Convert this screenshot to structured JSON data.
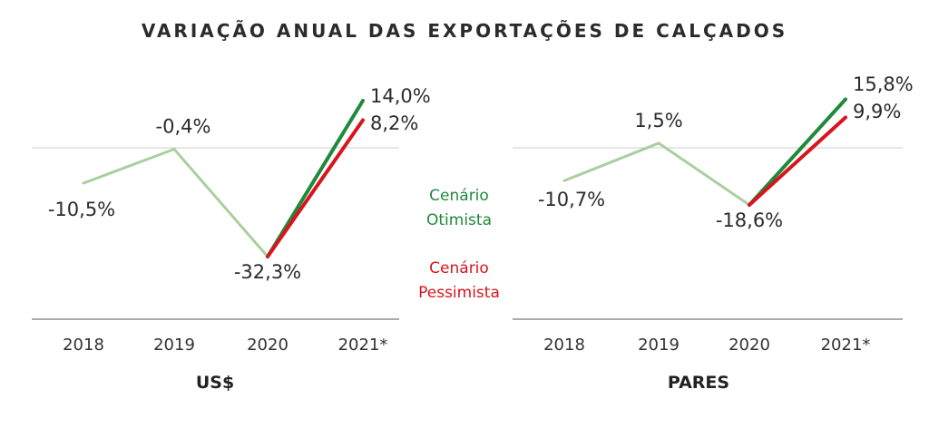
{
  "title": "VARIAÇÃO ANUAL DAS EXPORTAÇÕES DE CALÇADOS",
  "legend": {
    "optimistic": {
      "line1": "Cenário",
      "line2": "Otimista",
      "color": "#1e8a3c"
    },
    "pessimistic": {
      "line1": "Cenário",
      "line2": "Pessimista",
      "color": "#d9141d"
    }
  },
  "colors": {
    "history": "#a9cf9f",
    "optimistic": "#1e8a3c",
    "pessimistic": "#d9141d",
    "grid": "#cccccc"
  },
  "chart_data": [
    {
      "type": "line",
      "title": "US$",
      "categories": [
        "2018",
        "2019",
        "2020",
        "2021*"
      ],
      "series": [
        {
          "key": "history",
          "values": [
            -10.5,
            -0.4,
            -32.3,
            null
          ],
          "labels": [
            "-10,5%",
            "-0,4%",
            "-32,3%",
            null
          ]
        },
        {
          "name": "Cenário Otimista",
          "key": "optimistic",
          "values": [
            null,
            null,
            -32.3,
            14.0
          ],
          "labels": [
            null,
            null,
            null,
            "14,0%"
          ]
        },
        {
          "name": "Cenário Pessimista",
          "key": "pessimistic",
          "values": [
            null,
            null,
            -32.3,
            8.2
          ],
          "labels": [
            null,
            null,
            null,
            "8,2%"
          ]
        }
      ],
      "grid": true
    },
    {
      "type": "line",
      "title": "PARES",
      "categories": [
        "2018",
        "2019",
        "2020",
        "2021*"
      ],
      "series": [
        {
          "key": "history",
          "values": [
            -10.7,
            1.5,
            -18.6,
            null
          ],
          "labels": [
            "-10,7%",
            "1,5%",
            "-18,6%",
            null
          ]
        },
        {
          "name": "Cenário Otimista",
          "key": "optimistic",
          "values": [
            null,
            null,
            -18.6,
            15.8
          ],
          "labels": [
            null,
            null,
            null,
            "15,8%"
          ]
        },
        {
          "name": "Cenário Pessimista",
          "key": "pessimistic",
          "values": [
            null,
            null,
            -18.6,
            9.9
          ],
          "labels": [
            null,
            null,
            null,
            "9,9%"
          ]
        }
      ],
      "grid": true
    }
  ]
}
